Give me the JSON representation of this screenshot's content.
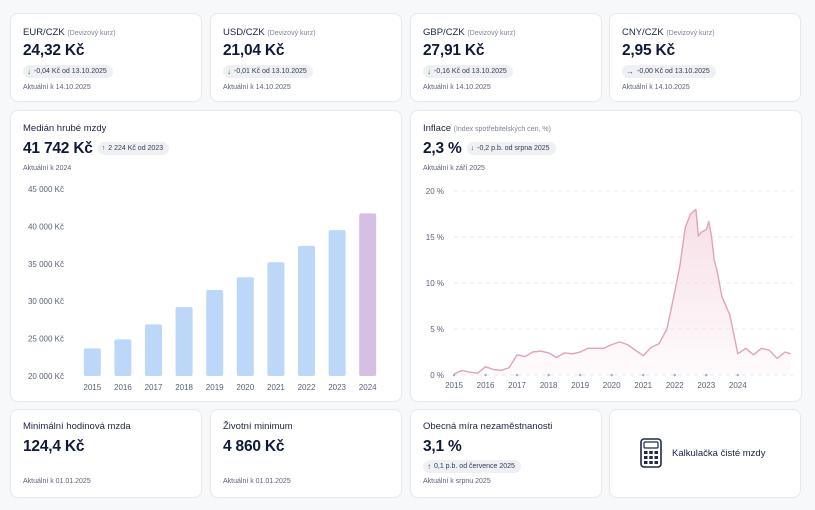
{
  "colors": {
    "bar": "#bcd7f8",
    "bar_highlight": "#d5bfe3",
    "inflation_line": "#e0a3b8",
    "inflation_fill": "#f6dbe5",
    "down_arrow": "#2f8a3e"
  },
  "currencies": [
    {
      "pair": "EUR/CZK",
      "type": "(Devizový kurz)",
      "value": "24,32 Kč",
      "arrow": "↓",
      "trend": "down",
      "change": "-0,04 Kč od 13.10.2025",
      "updated": "Aktuální k 14.10.2025"
    },
    {
      "pair": "USD/CZK",
      "type": "(Devizový kurz)",
      "value": "21,04 Kč",
      "arrow": "↓",
      "trend": "down",
      "change": "-0,01 Kč od 13.10.2025",
      "updated": "Aktuální k 14.10.2025"
    },
    {
      "pair": "GBP/CZK",
      "type": "(Devizový kurz)",
      "value": "27,91 Kč",
      "arrow": "↓",
      "trend": "down",
      "change": "-0,16 Kč od 13.10.2025",
      "updated": "Aktuální k 14.10.2025"
    },
    {
      "pair": "CNY/CZK",
      "type": "(Devizový kurz)",
      "value": "2,95 Kč",
      "arrow": "→",
      "trend": "flat",
      "change": "-0,00 Kč od 13.10.2025",
      "updated": "Aktuální k 14.10.2025"
    }
  ],
  "wage": {
    "title": "Medián hrubé mzdy",
    "value": "41 742 Kč",
    "arrow": "↑",
    "change": "2 224 Kč od 2023",
    "updated": "Aktuální k 2024"
  },
  "inflation": {
    "title": "Inflace",
    "subtitle": "(Index spotřebitelských cen, %)",
    "value": "2,3 %",
    "arrow": "↓",
    "change": "-0,2 p.b. od srpna 2025",
    "updated": "Aktuální k září 2025"
  },
  "chart_data": [
    {
      "type": "bar",
      "title": "",
      "categories": [
        "2015",
        "2016",
        "2017",
        "2018",
        "2019",
        "2020",
        "2021",
        "2022",
        "2023",
        "2024"
      ],
      "values": [
        23700,
        24900,
        26900,
        29200,
        31500,
        33200,
        35200,
        37400,
        39500,
        41742
      ],
      "ylim": [
        20000,
        45000
      ],
      "yticks": [
        "20 000 Kč",
        "25 000 Kč",
        "30 000 Kč",
        "35 000 Kč",
        "40 000 Kč",
        "45 000 Kč"
      ],
      "ytick_values": [
        20000,
        25000,
        30000,
        35000,
        40000,
        45000
      ],
      "highlight_last": true,
      "grid": false
    },
    {
      "type": "area",
      "title": "",
      "xlim": [
        2015,
        2025.75
      ],
      "ylim": [
        0,
        20
      ],
      "yticks": [
        "0 %",
        "5 %",
        "10 %",
        "15 %",
        "20 %"
      ],
      "ytick_values": [
        0,
        5,
        10,
        15,
        20
      ],
      "xticks": [
        "2015",
        "2016",
        "2017",
        "2018",
        "2019",
        "2020",
        "2021",
        "2022",
        "2023",
        "2024"
      ],
      "xtick_values": [
        2015,
        2016,
        2017,
        2018,
        2019,
        2020,
        2021,
        2022,
        2023,
        2024
      ],
      "grid": "horizontal-dashed",
      "series": [
        {
          "x": [
            2015.0,
            2015.25,
            2015.5,
            2015.75,
            2016.0,
            2016.25,
            2016.5,
            2016.75,
            2017.0,
            2017.25,
            2017.5,
            2017.75,
            2018.0,
            2018.25,
            2018.5,
            2018.75,
            2019.0,
            2019.25,
            2019.5,
            2019.75,
            2020.0,
            2020.25,
            2020.5,
            2020.75,
            2021.0,
            2021.25,
            2021.5,
            2021.75,
            2022.0,
            2022.17,
            2022.33,
            2022.5,
            2022.67,
            2022.75,
            2022.83,
            2023.0,
            2023.08,
            2023.17,
            2023.25,
            2023.33,
            2023.5,
            2023.75,
            2024.0,
            2024.25,
            2024.5,
            2024.75,
            2025.0,
            2025.25,
            2025.5,
            2025.67
          ],
          "y": [
            0.1,
            0.5,
            0.3,
            0.2,
            0.9,
            0.6,
            0.5,
            0.8,
            2.2,
            2.0,
            2.5,
            2.6,
            2.4,
            1.9,
            2.4,
            2.3,
            2.5,
            2.9,
            2.9,
            2.9,
            3.3,
            3.6,
            3.3,
            2.7,
            2.1,
            3.0,
            3.4,
            5.0,
            9.0,
            12.0,
            16.0,
            17.5,
            18.0,
            15.1,
            15.5,
            15.8,
            16.7,
            15.0,
            12.5,
            11.5,
            8.5,
            6.5,
            2.3,
            2.9,
            2.2,
            2.9,
            2.7,
            1.8,
            2.5,
            2.3
          ]
        }
      ]
    }
  ],
  "stats": [
    {
      "title": "Minimální hodinová mzda",
      "value": "124,4 Kč",
      "updated": "Aktuální k 01.01.2025"
    },
    {
      "title": "Životní minimum",
      "value": "4 860 Kč",
      "updated": "Aktuální k 01.01.2025"
    },
    {
      "title": "Obecná míra nezaměstnanosti",
      "value": "3,1 %",
      "arrow": "↑",
      "change": "0,1 p.b. od července 2025",
      "updated": "Aktuální k srpnu 2025"
    }
  ],
  "calculator": {
    "label": "Kalkulačka čisté mzdy",
    "icon": "calculator-icon"
  }
}
